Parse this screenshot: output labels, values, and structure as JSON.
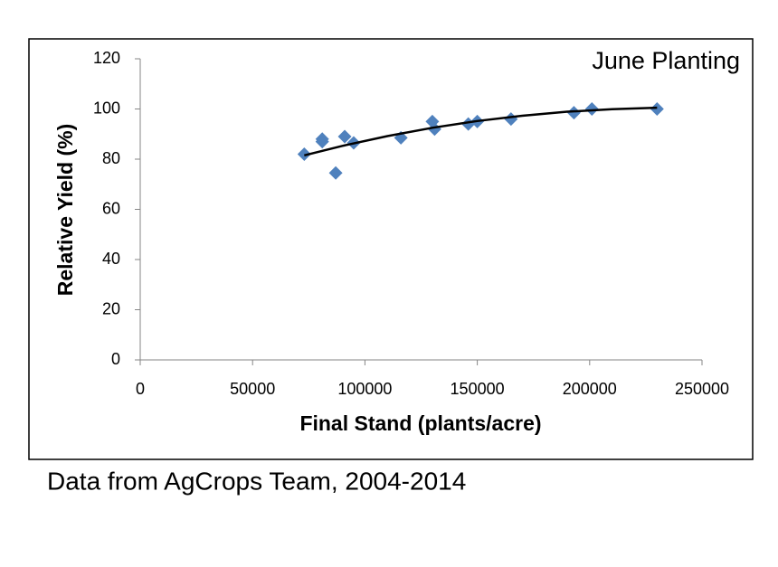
{
  "chart_data": {
    "type": "scatter",
    "title": "June Planting",
    "x_label": "Final Stand (plants/acre)",
    "y_label": "Relative Yield (%)",
    "note": "Data from AgCrops Team, 2004-2014",
    "series": [
      {
        "color": "#4f81bd",
        "x": [
          73000,
          81000,
          81000,
          87000,
          91000,
          95000,
          116000,
          130000,
          131000,
          146000,
          150000,
          165000,
          193000,
          201000,
          230000
        ],
        "values": [
          82,
          87,
          88,
          74.5,
          89,
          86.5,
          88.5,
          95,
          92,
          94,
          95,
          96,
          98.5,
          100,
          100
        ]
      }
    ],
    "trendline": {
      "color": "#000000",
      "x": [
        73000,
        90000,
        110000,
        130000,
        150000,
        170000,
        190000,
        210000,
        230000
      ],
      "values": [
        81.5,
        85.3,
        89.2,
        92.5,
        95.2,
        97.3,
        98.9,
        99.9,
        100.5
      ]
    },
    "xlim": [
      0,
      250000
    ],
    "xticks": [
      0,
      50000,
      100000,
      150000,
      200000,
      250000
    ],
    "ylim": [
      0,
      120
    ],
    "yticks": [
      0,
      20,
      40,
      60,
      80,
      100,
      120
    ],
    "grid": false
  }
}
